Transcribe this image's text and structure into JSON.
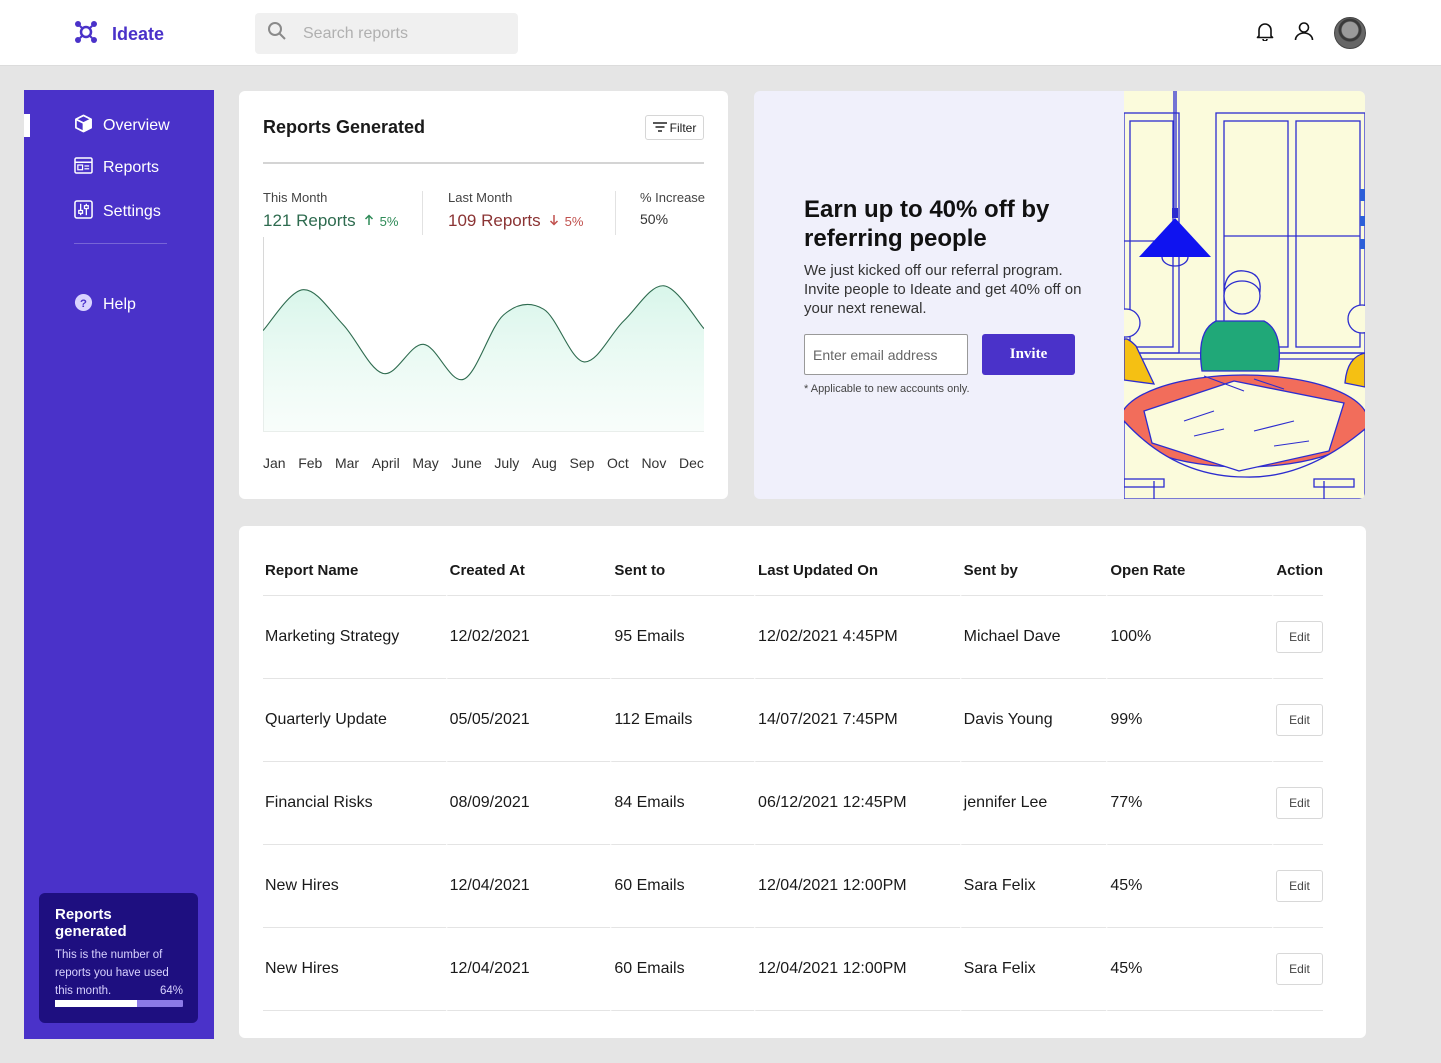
{
  "app": {
    "name": "Ideate"
  },
  "search": {
    "placeholder": "Search reports"
  },
  "header_icons": [
    "bell-icon",
    "user-icon",
    "avatar"
  ],
  "sidebar": {
    "items": [
      {
        "label": "Overview",
        "icon": "cube-icon",
        "active": true
      },
      {
        "label": "Reports",
        "icon": "browser-icon",
        "active": false
      },
      {
        "label": "Settings",
        "icon": "sliders-icon",
        "active": false
      },
      {
        "label": "Help",
        "icon": "help-icon",
        "active": false
      }
    ],
    "usage": {
      "title": "Reports generated",
      "description": "This is the number of reports you have used this month.",
      "percent_label": "64%",
      "percent": 64
    }
  },
  "reports_card": {
    "title": "Reports Generated",
    "filter_label": "Filter",
    "this_month": {
      "label": "This Month",
      "value": "121 Reports",
      "change": "5%"
    },
    "last_month": {
      "label": "Last Month",
      "value": "109 Reports",
      "change": "5%"
    },
    "increase": {
      "label": "% Increase",
      "value": "50%"
    }
  },
  "chart_data": {
    "type": "area",
    "x": [
      "Jan",
      "Feb",
      "Mar",
      "April",
      "May",
      "June",
      "July",
      "Aug",
      "Sep",
      "Oct",
      "Nov",
      "Dec"
    ],
    "values": [
      52,
      73,
      55,
      30,
      45,
      27,
      60,
      63,
      36,
      57,
      75,
      53
    ],
    "ylim": [
      0,
      100
    ],
    "colors": {
      "line": "#2e6b4f",
      "fill": "#e6f8f1"
    }
  },
  "promo": {
    "title": "Earn up to 40% off by referring people",
    "text": "We just kicked off our referral program. Invite people to Ideate and get 40% off on your next renewal.",
    "email_placeholder": "Enter email address",
    "invite_label": "Invite",
    "note": "* Applicable to new accounts only."
  },
  "table": {
    "headers": [
      "Report Name",
      "Created At",
      "Sent to",
      "Last Updated On",
      "Sent by",
      "Open Rate",
      "Action"
    ],
    "rows": [
      {
        "name": "Marketing Strategy",
        "created": "12/02/2021",
        "sent_to": "95 Emails",
        "updated": "12/02/2021 4:45PM",
        "sent_by": "Michael Dave",
        "open_rate": "100%",
        "action": "Edit"
      },
      {
        "name": "Quarterly Update",
        "created": "05/05/2021",
        "sent_to": "112 Emails",
        "updated": "14/07/2021 7:45PM",
        "sent_by": "Davis Young",
        "open_rate": "99%",
        "action": "Edit"
      },
      {
        "name": "Financial Risks",
        "created": "08/09/2021",
        "sent_to": "84 Emails",
        "updated": "06/12/2021 12:45PM",
        "sent_by": "jennifer Lee",
        "open_rate": "77%",
        "action": "Edit"
      },
      {
        "name": "New Hires",
        "created": "12/04/2021",
        "sent_to": "60 Emails",
        "updated": "12/04/2021 12:00PM",
        "sent_by": "Sara Felix",
        "open_rate": "45%",
        "action": "Edit"
      },
      {
        "name": "New Hires",
        "created": "12/04/2021",
        "sent_to": "60 Emails",
        "updated": "12/04/2021 12:00PM",
        "sent_by": "Sara Felix",
        "open_rate": "45%",
        "action": "Edit"
      }
    ]
  },
  "colors": {
    "primary": "#4a32c9",
    "positive": "#2e8b57",
    "negative": "#a33a3a"
  }
}
